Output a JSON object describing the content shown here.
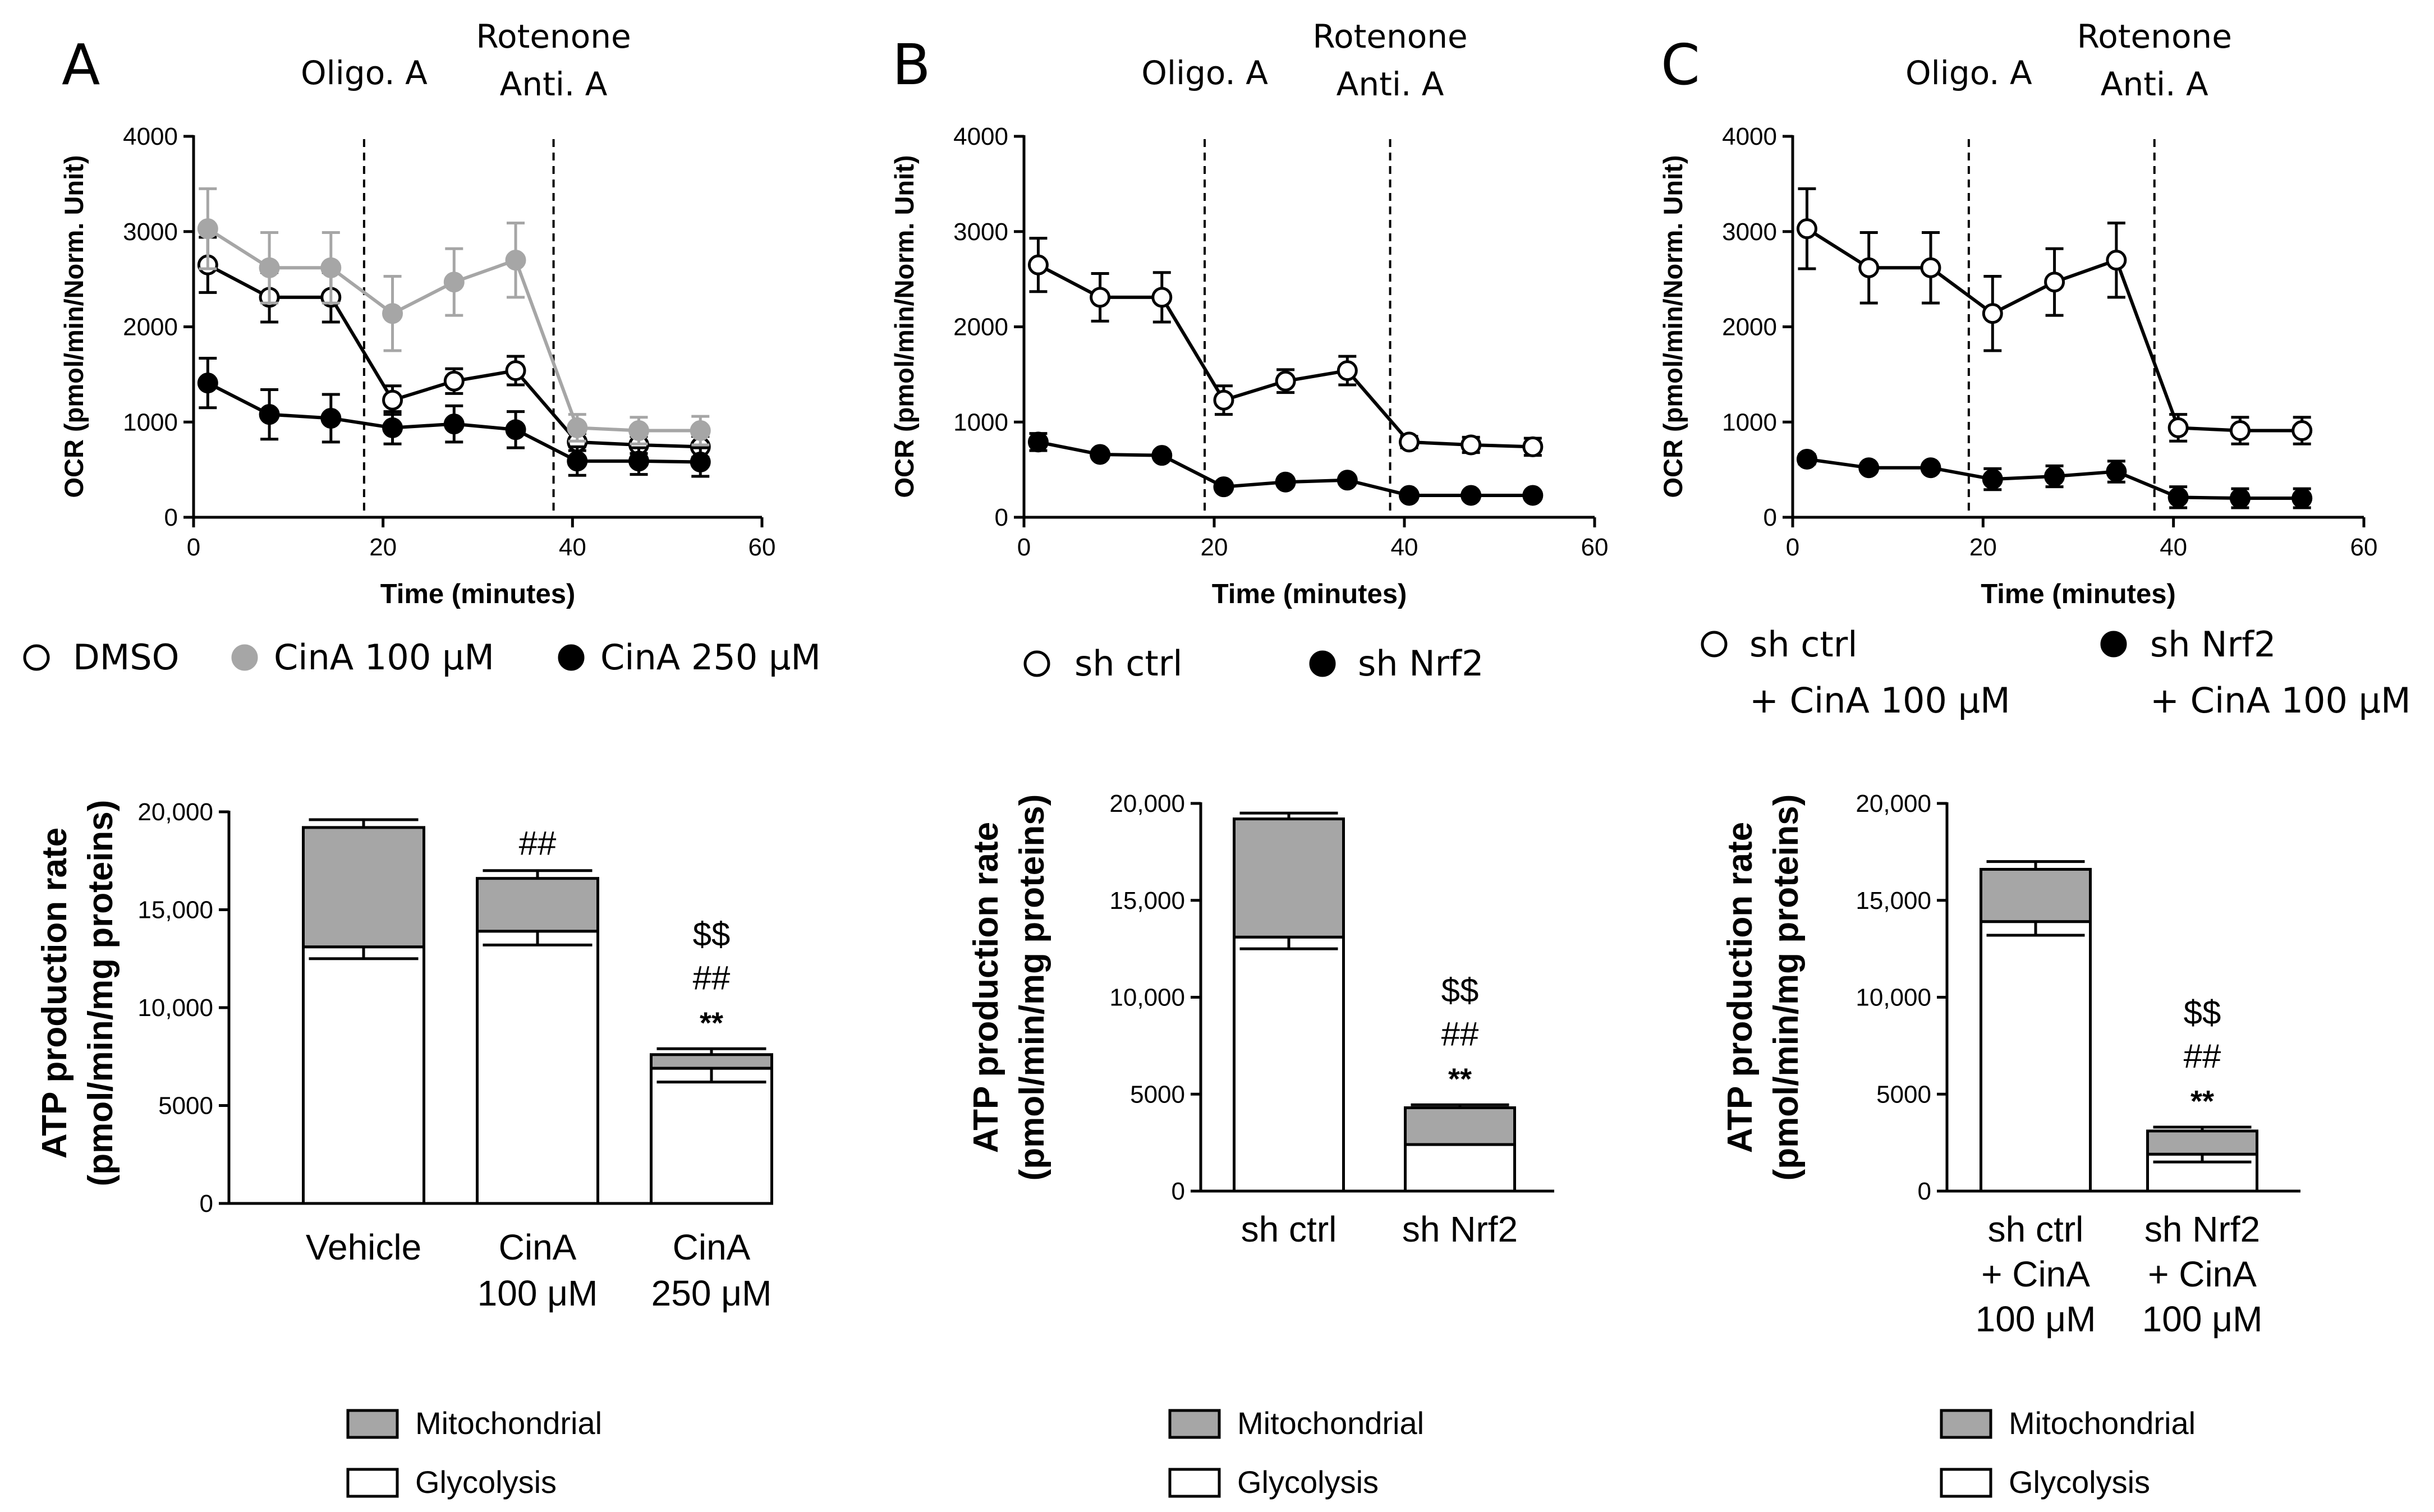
{
  "panel_labels": [
    "A",
    "B",
    "C"
  ],
  "colors": {
    "white": "#ffffff",
    "gray": "#a6a6a6",
    "black": "#000000",
    "mito_fill": "#a6a6a6"
  },
  "chart_data": [
    {
      "id": "A-ocr",
      "type": "line",
      "title": "",
      "xlabel": "Time (minutes)",
      "ylabel": "OCR (pmol/min/Norm. Unit)",
      "xlim": [
        0,
        60
      ],
      "ylim": [
        0,
        4000
      ],
      "xticks": [
        "0",
        "20",
        "40",
        "60"
      ],
      "yticks": [
        "0",
        "1000",
        "2000",
        "3000",
        "4000"
      ],
      "annotations": [
        {
          "text": [
            "Oligo. A"
          ],
          "x": 18
        },
        {
          "text": [
            "Rotenone",
            "Anti. A"
          ],
          "x": 38
        }
      ],
      "x": [
        1.5,
        8,
        14.5,
        21,
        27.5,
        34,
        40.5,
        47,
        53.5
      ],
      "series": [
        {
          "name": "DMSO",
          "marker": "open",
          "values": [
            2650,
            2310,
            2310,
            1230,
            1430,
            1540,
            790,
            760,
            740
          ],
          "errors": [
            290,
            260,
            260,
            150,
            130,
            150,
            90,
            90,
            110
          ]
        },
        {
          "name": "CinA 100 μM",
          "marker": "gray",
          "values": [
            3030,
            2620,
            2620,
            2140,
            2470,
            2700,
            940,
            910,
            910
          ],
          "errors": [
            420,
            370,
            370,
            390,
            350,
            390,
            140,
            140,
            150
          ]
        },
        {
          "name": "CinA 250 μM",
          "marker": "black",
          "values": [
            1410,
            1080,
            1040,
            940,
            980,
            920,
            590,
            590,
            580
          ],
          "errors": [
            260,
            260,
            250,
            170,
            190,
            190,
            150,
            140,
            150
          ]
        }
      ]
    },
    {
      "id": "B-ocr",
      "type": "line",
      "title": "",
      "xlabel": "Time (minutes)",
      "ylabel": "OCR (pmol/min/Norm. Unit)",
      "xlim": [
        0,
        60
      ],
      "ylim": [
        0,
        4000
      ],
      "xticks": [
        "0",
        "20",
        "40",
        "60"
      ],
      "yticks": [
        "0",
        "1000",
        "2000",
        "3000",
        "4000"
      ],
      "annotations": [
        {
          "text": [
            "Oligo. A"
          ],
          "x": 19
        },
        {
          "text": [
            "Rotenone",
            "Anti. A"
          ],
          "x": 38.5
        }
      ],
      "x": [
        1.5,
        8,
        14.5,
        21,
        27.5,
        34,
        40.5,
        47,
        53.5
      ],
      "series": [
        {
          "name": "sh ctrl",
          "marker": "open",
          "values": [
            2650,
            2310,
            2310,
            1230,
            1430,
            1540,
            790,
            760,
            740
          ],
          "errors": [
            280,
            250,
            260,
            150,
            120,
            150,
            60,
            80,
            90
          ]
        },
        {
          "name": "sh Nrf2",
          "marker": "black",
          "values": [
            790,
            660,
            650,
            320,
            370,
            390,
            230,
            230,
            230
          ],
          "errors": [
            90,
            40,
            40,
            40,
            40,
            40,
            30,
            30,
            30
          ]
        }
      ]
    },
    {
      "id": "C-ocr",
      "type": "line",
      "title": "",
      "xlabel": "Time (minutes)",
      "ylabel": "OCR (pmol/min/Norm. Unit)",
      "xlim": [
        0,
        60
      ],
      "ylim": [
        0,
        4000
      ],
      "xticks": [
        "0",
        "20",
        "40",
        "60"
      ],
      "yticks": [
        "0",
        "1000",
        "2000",
        "3000",
        "4000"
      ],
      "annotations": [
        {
          "text": [
            "Oligo. A"
          ],
          "x": 18.5
        },
        {
          "text": [
            "Rotenone",
            "Anti. A"
          ],
          "x": 38
        }
      ],
      "x": [
        1.5,
        8,
        14.5,
        21,
        27.5,
        34,
        40.5,
        47,
        53.5
      ],
      "series": [
        {
          "name": "sh ctrl + CinA 100 μM",
          "marker": "open",
          "values": [
            3030,
            2620,
            2620,
            2140,
            2470,
            2700,
            940,
            910,
            910
          ],
          "errors": [
            420,
            370,
            370,
            390,
            350,
            390,
            140,
            140,
            140
          ]
        },
        {
          "name": "sh Nrf2 + CinA 100 μM",
          "marker": "black",
          "values": [
            610,
            520,
            520,
            400,
            430,
            480,
            210,
            200,
            200
          ],
          "errors": [
            50,
            40,
            40,
            110,
            110,
            110,
            110,
            100,
            100
          ]
        }
      ]
    },
    {
      "id": "A-atp",
      "type": "bar",
      "stacked": true,
      "ylabel_lines": [
        "ATP production rate",
        "(pmol/min/mg proteins)"
      ],
      "ylim": [
        0,
        20000
      ],
      "yticks": [
        "0",
        "5000",
        "10,000",
        "15,000",
        "20,000"
      ],
      "categories": [
        [
          "Vehicle"
        ],
        [
          "CinA",
          "100 μM"
        ],
        [
          "CinA",
          "250 μM"
        ]
      ],
      "series": [
        {
          "name": "Glycolysis",
          "values": [
            13100,
            13900,
            6900
          ],
          "errors": [
            600,
            700,
            700
          ]
        },
        {
          "name": "Mitochondrial",
          "values": [
            6100,
            2700,
            700
          ],
          "errors": [
            400,
            400,
            300
          ]
        }
      ],
      "significance": [
        [],
        [
          "##"
        ],
        [
          "$$",
          "##",
          "**"
        ]
      ]
    },
    {
      "id": "B-atp",
      "type": "bar",
      "stacked": true,
      "ylabel_lines": [
        "ATP production rate",
        "(pmol/min/mg proteins)"
      ],
      "ylim": [
        0,
        20000
      ],
      "yticks": [
        "0",
        "5000",
        "10,000",
        "15,000",
        "20,000"
      ],
      "categories": [
        [
          "sh ctrl"
        ],
        [
          "sh Nrf2"
        ]
      ],
      "series": [
        {
          "name": "Glycolysis",
          "values": [
            13100,
            2400
          ],
          "errors": [
            600,
            0
          ]
        },
        {
          "name": "Mitochondrial",
          "values": [
            6100,
            1900
          ],
          "errors": [
            300,
            150
          ]
        }
      ],
      "significance": [
        [],
        [
          "$$",
          "##",
          "**"
        ]
      ]
    },
    {
      "id": "C-atp",
      "type": "bar",
      "stacked": true,
      "ylabel_lines": [
        "ATP production rate",
        "(pmol/min/mg proteins)"
      ],
      "ylim": [
        0,
        20000
      ],
      "yticks": [
        "0",
        "5000",
        "10,000",
        "15,000",
        "20,000"
      ],
      "categories": [
        [
          "sh ctrl",
          "+ CinA",
          "100 μM"
        ],
        [
          "sh Nrf2",
          "+ CinA",
          "100 μM"
        ]
      ],
      "series": [
        {
          "name": "Glycolysis",
          "values": [
            13900,
            1900
          ],
          "errors": [
            700,
            400
          ]
        },
        {
          "name": "Mitochondrial",
          "values": [
            2700,
            1200
          ],
          "errors": [
            400,
            200
          ]
        }
      ],
      "significance": [
        [],
        [
          "$$",
          "##",
          "**"
        ]
      ]
    }
  ],
  "bar_legend": [
    {
      "name": "Mitochondrial",
      "fill": "#a6a6a6"
    },
    {
      "name": "Glycolysis",
      "fill": "#ffffff"
    }
  ]
}
